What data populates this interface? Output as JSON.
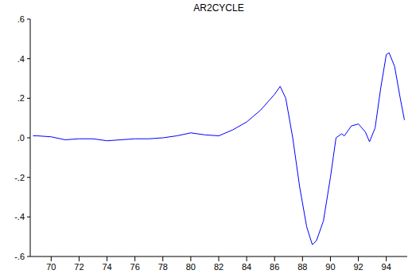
{
  "chart_data": {
    "type": "line",
    "title": "AR2CYCLE",
    "x": [
      1968.7,
      1969.0,
      1970.0,
      1971.0,
      1972.0,
      1973.0,
      1974.0,
      1975.0,
      1976.0,
      1977.0,
      1978.0,
      1979.0,
      1980.0,
      1981.0,
      1982.0,
      1983.0,
      1984.0,
      1985.0,
      1986.0,
      1986.4,
      1986.8,
      1987.3,
      1987.8,
      1988.3,
      1988.7,
      1989.0,
      1989.5,
      1990.0,
      1990.4,
      1990.8,
      1991.0,
      1991.5,
      1992.0,
      1992.5,
      1992.8,
      1993.2,
      1993.6,
      1994.0,
      1994.2,
      1994.6,
      1995.0,
      1995.3
    ],
    "values": [
      0.01,
      0.01,
      0.005,
      -0.01,
      -0.005,
      -0.005,
      -0.015,
      -0.01,
      -0.005,
      -0.005,
      0.0,
      0.01,
      0.025,
      0.015,
      0.01,
      0.04,
      0.08,
      0.14,
      0.22,
      0.26,
      0.2,
      0.0,
      -0.25,
      -0.45,
      -0.54,
      -0.52,
      -0.42,
      -0.2,
      0.0,
      0.02,
      0.01,
      0.06,
      0.07,
      0.03,
      -0.02,
      0.05,
      0.25,
      0.42,
      0.43,
      0.36,
      0.2,
      0.09
    ],
    "color": "#0000ff",
    "xlim": [
      1968.5,
      1995.5
    ],
    "xticks": [
      {
        "value": 1970,
        "label": "70"
      },
      {
        "value": 1972,
        "label": "72"
      },
      {
        "value": 1974,
        "label": "74"
      },
      {
        "value": 1976,
        "label": "76"
      },
      {
        "value": 1978,
        "label": "78"
      },
      {
        "value": 1980,
        "label": "80"
      },
      {
        "value": 1982,
        "label": "82"
      },
      {
        "value": 1984,
        "label": "84"
      },
      {
        "value": 1986,
        "label": "86"
      },
      {
        "value": 1988,
        "label": "88"
      },
      {
        "value": 1990,
        "label": "90"
      },
      {
        "value": 1992,
        "label": "92"
      },
      {
        "value": 1994,
        "label": "94"
      }
    ],
    "ylim": [
      -0.6,
      0.6
    ],
    "yticks": [
      {
        "value": -0.6,
        "label": "-.6"
      },
      {
        "value": -0.4,
        "label": "-.4"
      },
      {
        "value": -0.2,
        "label": "-.2"
      },
      {
        "value": 0,
        "label": ".0"
      },
      {
        "value": 0.2,
        "label": ".2"
      },
      {
        "value": 0.4,
        "label": ".4"
      },
      {
        "value": 0.6,
        "label": ".6"
      }
    ],
    "grid": false
  }
}
